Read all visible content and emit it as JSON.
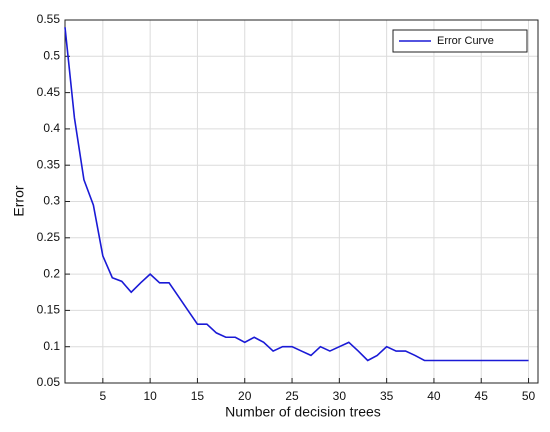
{
  "chart_data": {
    "type": "line",
    "xlabel": "Number of decision trees",
    "ylabel": "Error",
    "x": [
      1,
      2,
      3,
      4,
      5,
      6,
      7,
      8,
      9,
      10,
      11,
      12,
      13,
      14,
      15,
      16,
      17,
      18,
      19,
      20,
      21,
      22,
      23,
      24,
      25,
      26,
      27,
      28,
      29,
      30,
      31,
      32,
      33,
      34,
      35,
      36,
      37,
      38,
      39,
      40,
      41,
      42,
      43,
      44,
      45,
      46,
      47,
      48,
      49,
      50
    ],
    "series": [
      {
        "name": "Error Curve",
        "color": "#1a1ad6",
        "values": [
          0.54,
          0.415,
          0.33,
          0.295,
          0.225,
          0.195,
          0.19,
          0.175,
          0.188,
          0.2,
          0.188,
          0.188,
          0.169,
          0.15,
          0.131,
          0.131,
          0.119,
          0.113,
          0.113,
          0.106,
          0.113,
          0.106,
          0.094,
          0.1,
          0.1,
          0.094,
          0.088,
          0.1,
          0.094,
          0.1,
          0.106,
          0.094,
          0.081,
          0.088,
          0.1,
          0.094,
          0.094,
          0.088,
          0.081,
          0.081,
          0.081,
          0.081,
          0.081,
          0.081,
          0.081,
          0.081,
          0.081,
          0.081,
          0.081,
          0.081
        ]
      }
    ],
    "xlim": [
      1,
      51
    ],
    "xticks": [
      5,
      10,
      15,
      20,
      25,
      30,
      35,
      40,
      45,
      50
    ],
    "ylim": [
      0.05,
      0.55
    ],
    "yticks": [
      0.05,
      0.1,
      0.15,
      0.2,
      0.25,
      0.3,
      0.35,
      0.4,
      0.45,
      0.5,
      0.55
    ],
    "grid": true,
    "legend": "upper right"
  }
}
